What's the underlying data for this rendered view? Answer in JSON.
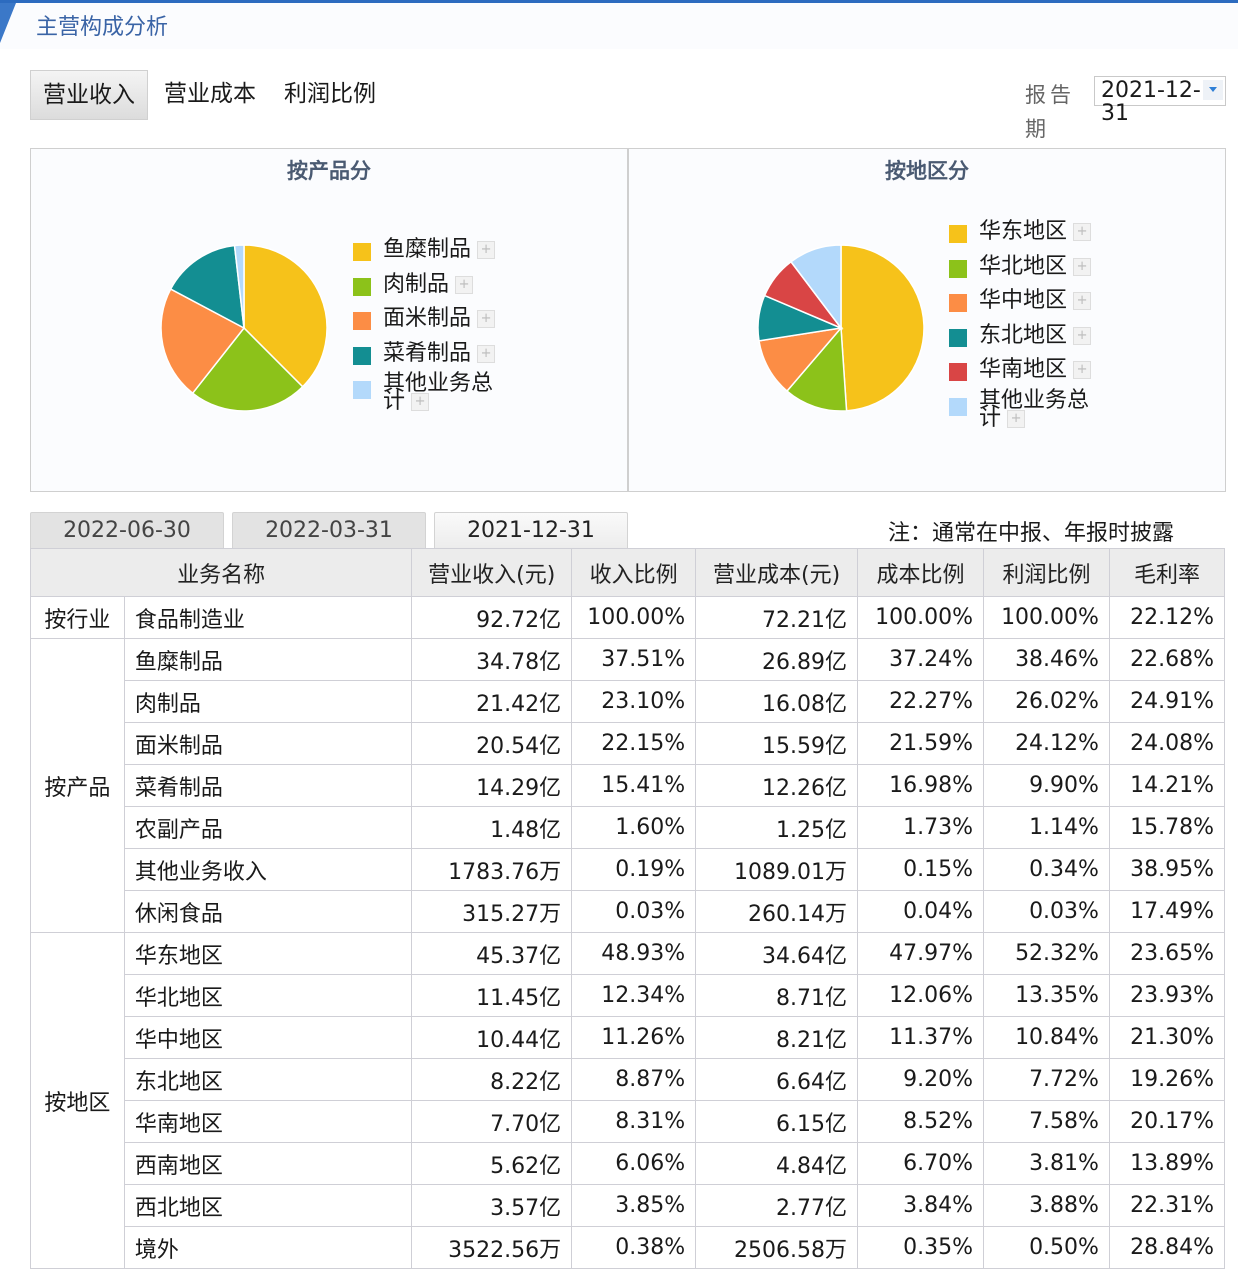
{
  "header": {
    "title": "主营构成分析",
    "accent": "#3b78c8"
  },
  "type_tabs": [
    {
      "label": "营业收入",
      "active": true
    },
    {
      "label": "营业成本",
      "active": false
    },
    {
      "label": "利润比例",
      "active": false
    }
  ],
  "report_period": {
    "label": "报告期",
    "value_line1": "2021-12-",
    "value_line2": "31"
  },
  "chart_data": [
    {
      "type": "pie",
      "title": "按产品分",
      "categories": [
        "鱼糜制品",
        "肉制品",
        "面米制品",
        "菜肴制品",
        "其他业务总计"
      ],
      "values": [
        37.51,
        23.1,
        22.15,
        15.41,
        1.82
      ],
      "colors": [
        "#f6c21a",
        "#8cc21a",
        "#fc8d45",
        "#138e92",
        "#b3d9fb"
      ],
      "legend_position": "right"
    },
    {
      "type": "pie",
      "title": "按地区分",
      "categories": [
        "华东地区",
        "华北地区",
        "华中地区",
        "东北地区",
        "华南地区",
        "其他业务总计"
      ],
      "values": [
        48.93,
        12.34,
        11.26,
        8.87,
        8.31,
        10.29
      ],
      "colors": [
        "#f6c21a",
        "#8cc21a",
        "#fc8d45",
        "#138e92",
        "#d94545",
        "#b3d9fb"
      ],
      "legend_position": "right"
    }
  ],
  "date_tabs": [
    {
      "label": "2022-06-30",
      "active": false
    },
    {
      "label": "2022-03-31",
      "active": false
    },
    {
      "label": "2021-12-31",
      "active": true
    }
  ],
  "note": "注：通常在中报、年报时披露",
  "table": {
    "headers": [
      "业务名称",
      "营业收入(元)",
      "收入比例",
      "营业成本(元)",
      "成本比例",
      "利润比例",
      "毛利率"
    ],
    "groups": [
      {
        "category": "按行业",
        "rows": [
          [
            "食品制造业",
            "92.72亿",
            "100.00%",
            "72.21亿",
            "100.00%",
            "100.00%",
            "22.12%"
          ]
        ]
      },
      {
        "category": "按产品",
        "rows": [
          [
            "鱼糜制品",
            "34.78亿",
            "37.51%",
            "26.89亿",
            "37.24%",
            "38.46%",
            "22.68%"
          ],
          [
            "肉制品",
            "21.42亿",
            "23.10%",
            "16.08亿",
            "22.27%",
            "26.02%",
            "24.91%"
          ],
          [
            "面米制品",
            "20.54亿",
            "22.15%",
            "15.59亿",
            "21.59%",
            "24.12%",
            "24.08%"
          ],
          [
            "菜肴制品",
            "14.29亿",
            "15.41%",
            "12.26亿",
            "16.98%",
            "9.90%",
            "14.21%"
          ],
          [
            "农副产品",
            "1.48亿",
            "1.60%",
            "1.25亿",
            "1.73%",
            "1.14%",
            "15.78%"
          ],
          [
            "其他业务收入",
            "1783.76万",
            "0.19%",
            "1089.01万",
            "0.15%",
            "0.34%",
            "38.95%"
          ],
          [
            "休闲食品",
            "315.27万",
            "0.03%",
            "260.14万",
            "0.04%",
            "0.03%",
            "17.49%"
          ]
        ]
      },
      {
        "category": "按地区",
        "rows": [
          [
            "华东地区",
            "45.37亿",
            "48.93%",
            "34.64亿",
            "47.97%",
            "52.32%",
            "23.65%"
          ],
          [
            "华北地区",
            "11.45亿",
            "12.34%",
            "8.71亿",
            "12.06%",
            "13.35%",
            "23.93%"
          ],
          [
            "华中地区",
            "10.44亿",
            "11.26%",
            "8.21亿",
            "11.37%",
            "10.84%",
            "21.30%"
          ],
          [
            "东北地区",
            "8.22亿",
            "8.87%",
            "6.64亿",
            "9.20%",
            "7.72%",
            "19.26%"
          ],
          [
            "华南地区",
            "7.70亿",
            "8.31%",
            "6.15亿",
            "8.52%",
            "7.58%",
            "20.17%"
          ],
          [
            "西南地区",
            "5.62亿",
            "6.06%",
            "4.84亿",
            "6.70%",
            "3.81%",
            "13.89%"
          ],
          [
            "西北地区",
            "3.57亿",
            "3.85%",
            "2.77亿",
            "3.84%",
            "3.88%",
            "22.31%"
          ],
          [
            "境外",
            "3522.56万",
            "0.38%",
            "2506.58万",
            "0.35%",
            "0.50%",
            "28.84%"
          ]
        ]
      }
    ]
  }
}
